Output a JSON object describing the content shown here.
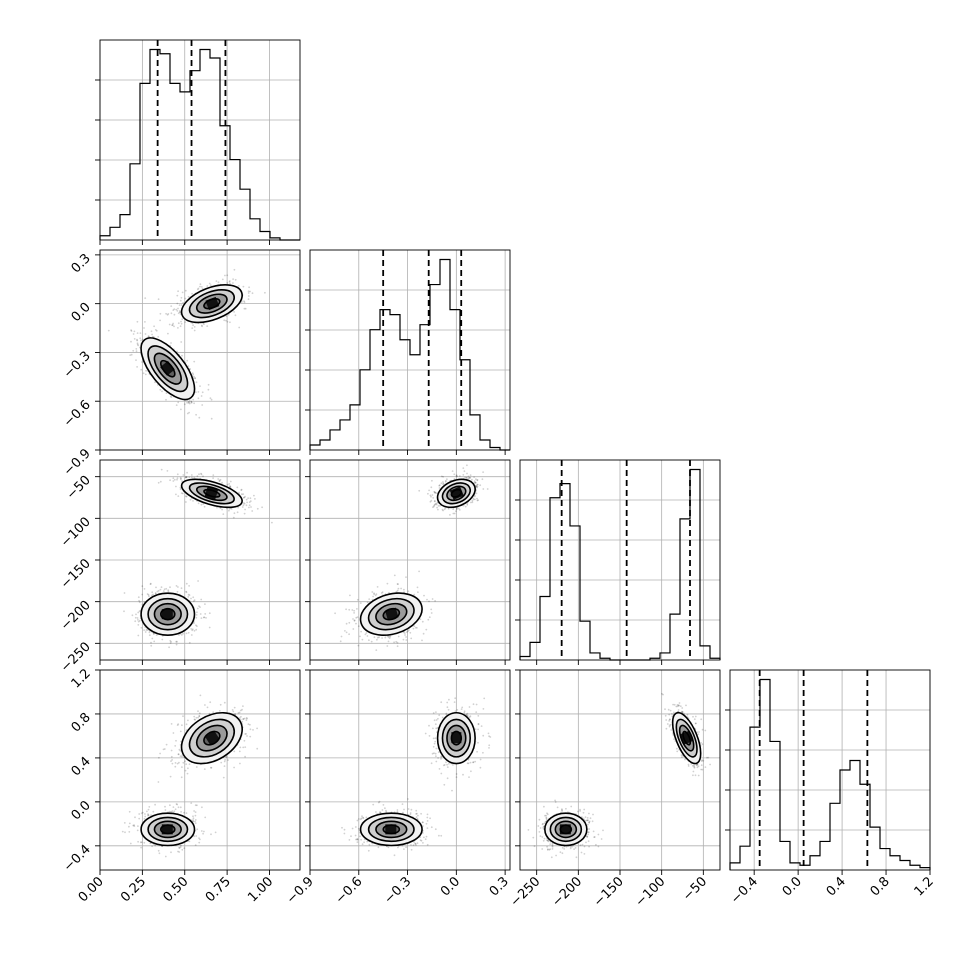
{
  "colors": {
    "line": "#000000",
    "grid": "#b0b0b0",
    "scatter": "#000000",
    "background": "#ffffff"
  },
  "chart_data": {
    "type": "corner",
    "grid": true,
    "parameters": [
      {
        "index": 0,
        "range": [
          0.0,
          1.18
        ],
        "ticks": [
          0.0,
          0.25,
          0.5,
          0.75,
          1.0
        ],
        "tick_labels": [
          "0.00",
          "0.25",
          "0.50",
          "0.75",
          "1.00"
        ],
        "quantiles": [
          0.34,
          0.54,
          0.74
        ]
      },
      {
        "index": 1,
        "range": [
          -0.9,
          0.33
        ],
        "ticks": [
          -0.9,
          -0.6,
          -0.3,
          0.0,
          0.3
        ],
        "tick_labels": [
          "−0.9",
          "−0.6",
          "−0.3",
          "0.0",
          "0.3"
        ],
        "quantiles": [
          -0.45,
          -0.17,
          0.03
        ]
      },
      {
        "index": 2,
        "range": [
          -270,
          -30
        ],
        "ticks": [
          -250,
          -200,
          -150,
          -100,
          -50
        ],
        "tick_labels": [
          "−250",
          "−200",
          "−150",
          "−100",
          "−50"
        ],
        "quantiles": [
          -220,
          -142,
          -66
        ]
      },
      {
        "index": 3,
        "range": [
          -0.62,
          1.2
        ],
        "ticks": [
          -0.4,
          0.0,
          0.4,
          0.8,
          1.2
        ],
        "tick_labels": [
          "−0.4",
          "0.0",
          "0.4",
          "0.8",
          "1.2"
        ],
        "quantiles": [
          -0.35,
          0.05,
          0.63
        ]
      }
    ],
    "histograms": [
      {
        "param": 0,
        "bins": [
          0.0,
          0.059,
          0.118,
          0.177,
          0.236,
          0.295,
          0.354,
          0.413,
          0.472,
          0.531,
          0.59,
          0.649,
          0.708,
          0.767,
          0.826,
          0.885,
          0.944,
          1.003,
          1.062,
          1.121,
          1.18
        ],
        "counts": [
          1,
          3,
          6,
          18,
          37,
          45,
          44,
          37,
          35,
          40,
          45,
          43,
          27,
          19,
          12,
          5,
          2,
          0.5,
          0,
          0
        ]
      },
      {
        "param": 1,
        "bins": [
          -0.9,
          -0.8385,
          -0.777,
          -0.7155,
          -0.654,
          -0.5925,
          -0.531,
          -0.4695,
          -0.408,
          -0.3465,
          -0.285,
          -0.2235,
          -0.162,
          -0.1005,
          -0.039,
          0.0225,
          0.084,
          0.1455,
          0.207,
          0.2685,
          0.33
        ],
        "counts": [
          1,
          2,
          4,
          6,
          9,
          16,
          24,
          28,
          27,
          22,
          19,
          25,
          33,
          38,
          28,
          18,
          7,
          2,
          0.5,
          0
        ]
      },
      {
        "param": 2,
        "bins": [
          -270,
          -258,
          -246,
          -234,
          -222,
          -210,
          -198,
          -186,
          -174,
          -162,
          -150,
          -138,
          -126,
          -114,
          -102,
          -90,
          -78,
          -66,
          -54,
          -42,
          -30
        ],
        "counts": [
          1,
          5,
          18,
          46,
          50,
          38,
          11,
          2,
          0.5,
          0,
          0,
          0,
          0,
          0.5,
          2,
          13,
          40,
          54,
          4,
          0.5
        ]
      },
      {
        "param": 3,
        "bins": [
          -0.62,
          -0.529,
          -0.438,
          -0.347,
          -0.256,
          -0.165,
          -0.074,
          0.017,
          0.108,
          0.199,
          0.29,
          0.381,
          0.472,
          0.563,
          0.654,
          0.745,
          0.836,
          0.927,
          1.018,
          1.109,
          1.2
        ],
        "counts": [
          1.5,
          5,
          30,
          40,
          27,
          6,
          1.5,
          1,
          3,
          6,
          14,
          21,
          23,
          18,
          9,
          4.5,
          3,
          2,
          1,
          0.5
        ]
      }
    ],
    "modes": [
      {
        "weight": 0.5,
        "mean": [
          0.4,
          -0.4,
          -215,
          -0.25
        ],
        "sd": [
          0.075,
          0.09,
          12,
          0.07
        ],
        "corr01": -0.65,
        "corr23": 0.0
      },
      {
        "weight": 0.5,
        "mean": [
          0.66,
          0.0,
          -70,
          0.58
        ],
        "sd": [
          0.085,
          0.055,
          8,
          0.11
        ],
        "corr01": 0.45,
        "corr23": -0.6
      }
    ],
    "pair_correlations": {
      "0-1": [
        -0.65,
        0.45
      ],
      "0-2": [
        0.0,
        -0.55
      ],
      "1-2": [
        0.25,
        0.3
      ],
      "0-3": [
        0.0,
        0.35
      ],
      "1-3": [
        0.0,
        0.0
      ],
      "2-3": [
        0.0,
        -0.6
      ]
    }
  }
}
